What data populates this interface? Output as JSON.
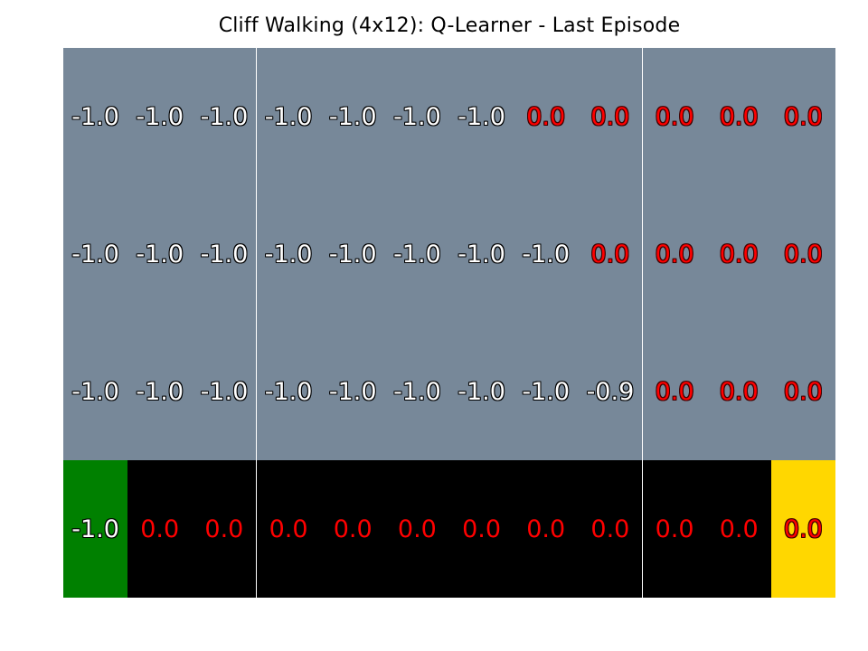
{
  "title": "Cliff Walking (4x12): Q-Learner - Last Episode",
  "colors": {
    "grid_cell": "#778899",
    "cliff": "#000000",
    "start": "#008000",
    "goal": "#ffd700",
    "negative_text": "#ffffff",
    "zero_text": "#ff0000"
  },
  "grid": {
    "rows": 4,
    "cols": 12,
    "values": [
      [
        "-1.0",
        "-1.0",
        "-1.0",
        "-1.0",
        "-1.0",
        "-1.0",
        "-1.0",
        "0.0",
        "0.0",
        "0.0",
        "0.0",
        "0.0"
      ],
      [
        "-1.0",
        "-1.0",
        "-1.0",
        "-1.0",
        "-1.0",
        "-1.0",
        "-1.0",
        "-1.0",
        "0.0",
        "0.0",
        "0.0",
        "0.0"
      ],
      [
        "-1.0",
        "-1.0",
        "-1.0",
        "-1.0",
        "-1.0",
        "-1.0",
        "-1.0",
        "-1.0",
        "-0.9",
        "0.0",
        "0.0",
        "0.0"
      ],
      [
        "-1.0",
        "0.0",
        "0.0",
        "0.0",
        "0.0",
        "0.0",
        "0.0",
        "0.0",
        "0.0",
        "0.0",
        "0.0",
        "0.0"
      ]
    ],
    "cell_types": [
      [
        "normal",
        "normal",
        "normal",
        "normal",
        "normal",
        "normal",
        "normal",
        "normal",
        "normal",
        "normal",
        "normal",
        "normal"
      ],
      [
        "normal",
        "normal",
        "normal",
        "normal",
        "normal",
        "normal",
        "normal",
        "normal",
        "normal",
        "normal",
        "normal",
        "normal"
      ],
      [
        "normal",
        "normal",
        "normal",
        "normal",
        "normal",
        "normal",
        "normal",
        "normal",
        "normal",
        "normal",
        "normal",
        "normal"
      ],
      [
        "start",
        "cliff",
        "cliff",
        "cliff",
        "cliff",
        "cliff",
        "cliff",
        "cliff",
        "cliff",
        "cliff",
        "cliff",
        "goal"
      ]
    ]
  }
}
